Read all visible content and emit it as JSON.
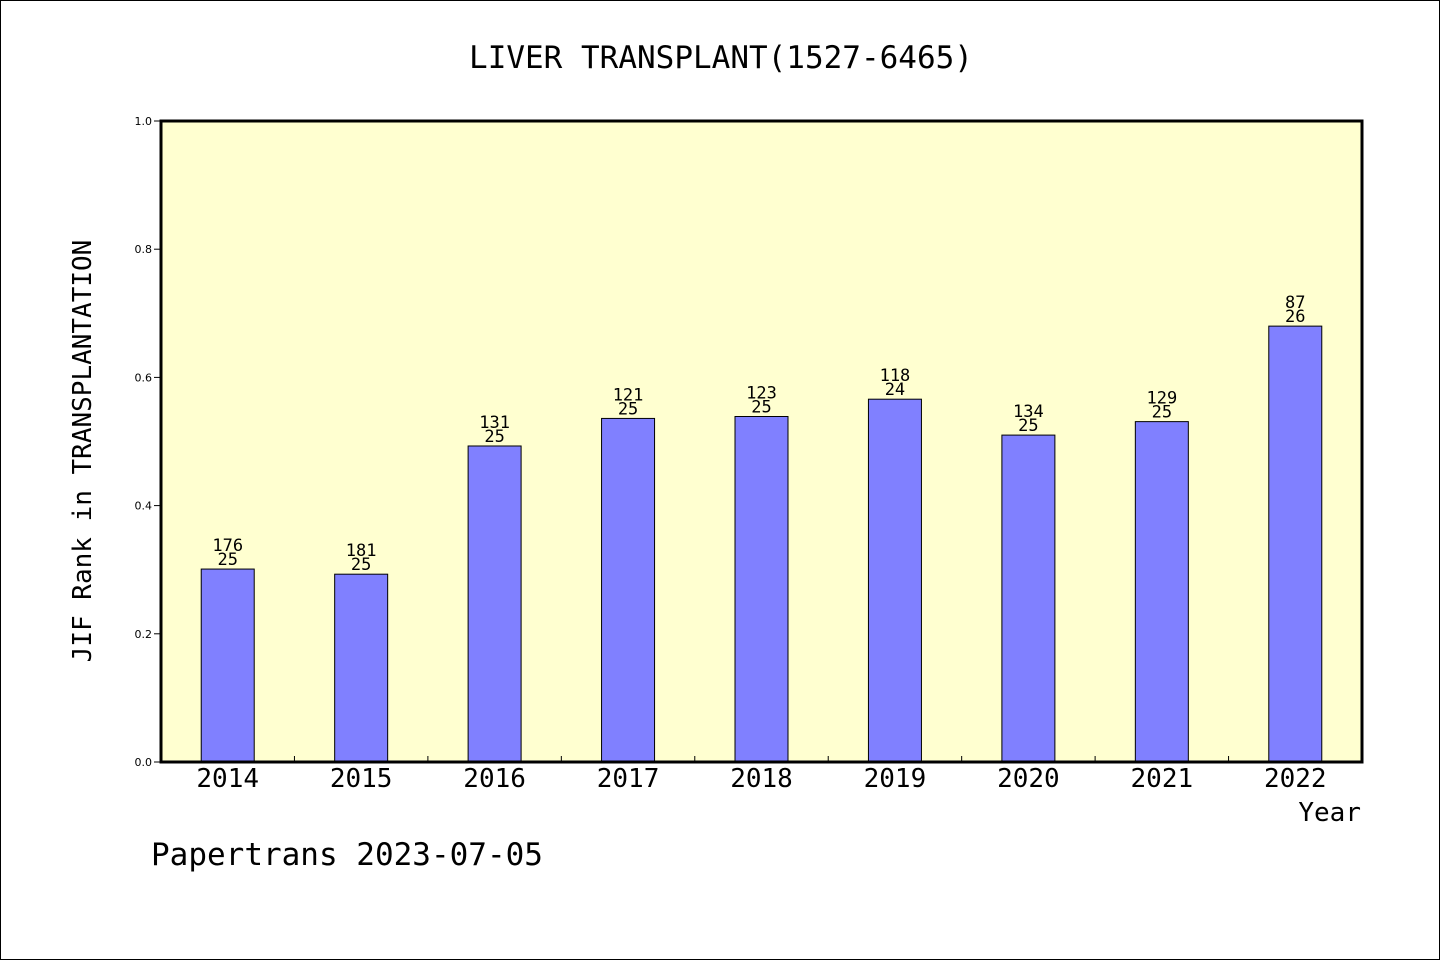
{
  "chart_data": {
    "type": "bar",
    "title": "LIVER TRANSPLANT(1527-6465)",
    "xlabel": "Year",
    "ylabel": "JIF Rank in TRANSPLANTATION",
    "ylim": [
      0,
      1.0
    ],
    "yticks": [
      "0.0",
      "0.2",
      "0.4",
      "0.6",
      "0.8",
      "1.0"
    ],
    "categories": [
      "2014",
      "2015",
      "2016",
      "2017",
      "2018",
      "2019",
      "2020",
      "2021",
      "2022"
    ],
    "values": [
      0.301,
      0.293,
      0.493,
      0.536,
      0.539,
      0.566,
      0.51,
      0.531,
      0.68
    ],
    "total_journals": [
      "176",
      "181",
      "131",
      "121",
      "123",
      "118",
      "134",
      "129",
      "87"
    ],
    "rank": [
      "25",
      "25",
      "25",
      "25",
      "25",
      "24",
      "25",
      "25",
      "26"
    ],
    "bar_color": "#8080ff",
    "plot_background": "#ffffd0",
    "grid": false,
    "legend": "none"
  },
  "footer": {
    "text": "Papertrans 2023-07-05"
  }
}
